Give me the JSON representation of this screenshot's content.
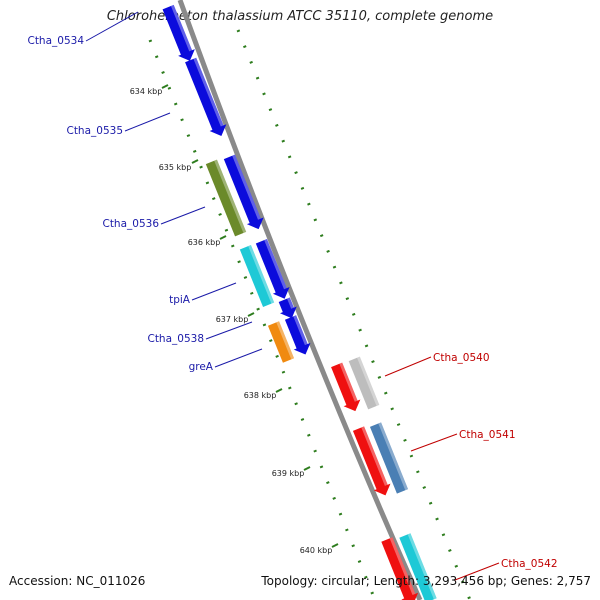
{
  "title": "Chloroherpeton thalassium ATCC 35110, complete genome",
  "accession": "Accession: NC_011026",
  "summary": "Topology: circular; Length: 3,293,456 bp; Genes: 2,757",
  "colors": {
    "backbone": "#8a8a8a",
    "gc_dots": "#2e7d1e",
    "forward_label": "#1a1aa8",
    "reverse_label": "#c00000"
  },
  "ticks": [
    "634 kbp",
    "635 kbp",
    "636 kbp",
    "637 kbp",
    "638 kbp",
    "639 kbp",
    "640 kbp"
  ],
  "genes": [
    {
      "label": "Ctha_0534",
      "strand": "forward",
      "color": "#0b0bdc"
    },
    {
      "label": "Ctha_0535",
      "strand": "forward",
      "color": "#0b0bdc"
    },
    {
      "label": "Ctha_0536",
      "strand": "forward",
      "color": "#0b0bdc"
    },
    {
      "label": "",
      "strand": "forward",
      "color": "#6b8a2a"
    },
    {
      "label": "tpiA",
      "strand": "forward",
      "color": "#0b0bdc"
    },
    {
      "label": "",
      "strand": "forward",
      "color": "#1ec9d6"
    },
    {
      "label": "Ctha_0538",
      "strand": "forward",
      "color": "#0b0bdc"
    },
    {
      "label": "greA",
      "strand": "forward",
      "color": "#0b0bdc"
    },
    {
      "label": "",
      "strand": "forward",
      "color": "#f08a10"
    },
    {
      "label": "Ctha_0540",
      "strand": "reverse",
      "color": "#ef1010"
    },
    {
      "label": "",
      "strand": "reverse",
      "color": "#bdbdbd"
    },
    {
      "label": "Ctha_0541",
      "strand": "reverse",
      "color": "#ef1010"
    },
    {
      "label": "",
      "strand": "reverse",
      "color": "#4a7fb4"
    },
    {
      "label": "Ctha_0542",
      "strand": "reverse",
      "color": "#ef1010"
    },
    {
      "label": "",
      "strand": "reverse",
      "color": "#1ec9d6"
    }
  ]
}
